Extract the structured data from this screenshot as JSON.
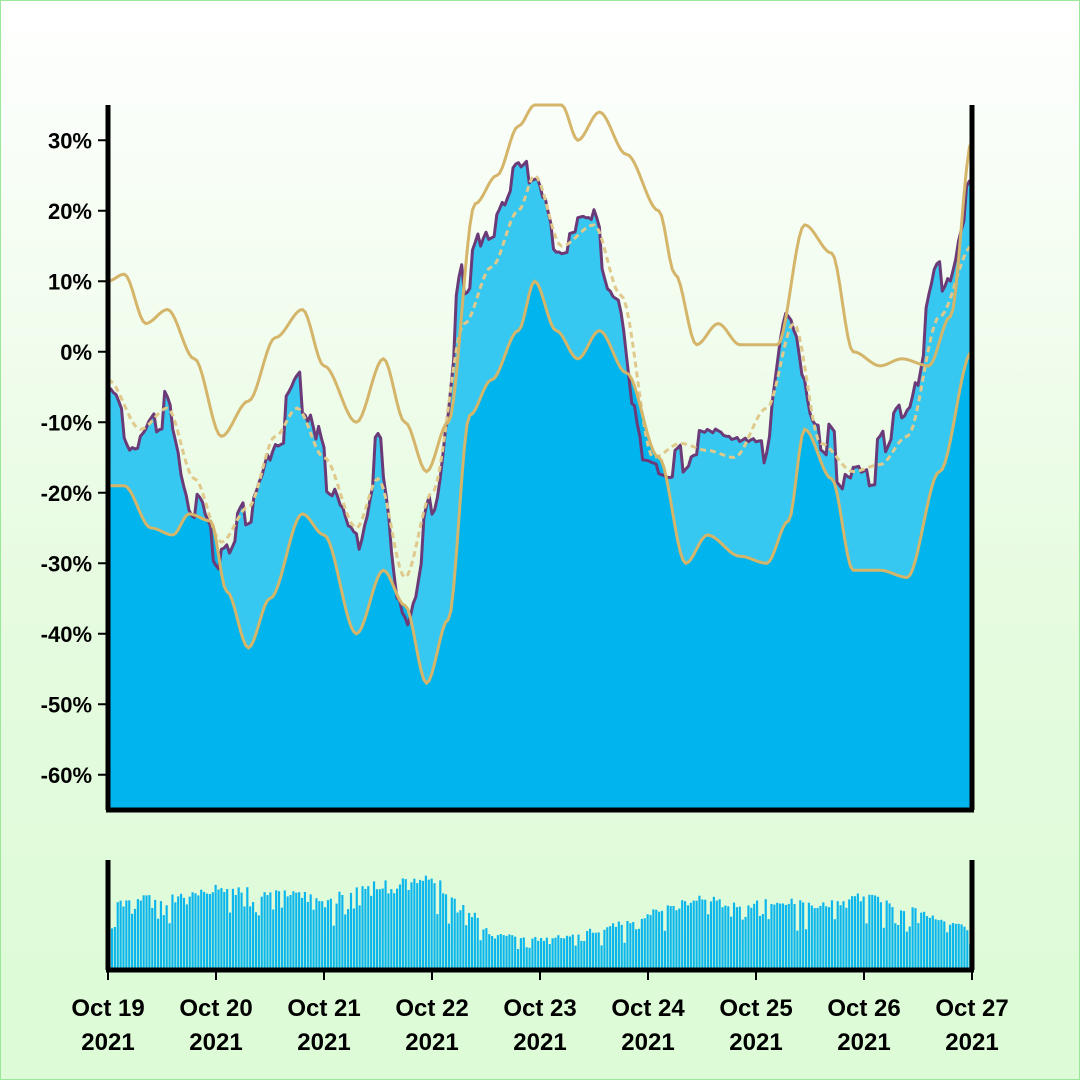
{
  "chart_data": {
    "type": "area",
    "title": "",
    "xlabel": "",
    "ylabel": "",
    "ylim": [
      -65,
      35
    ],
    "xlim": [
      "2021-10-19",
      "2021-10-27"
    ],
    "y_ticks": [
      "30%",
      "20%",
      "10%",
      "0%",
      "-10%",
      "-20%",
      "-30%",
      "-40%",
      "-50%",
      "-60%"
    ],
    "x_ticks": [
      {
        "line1": "Oct 19",
        "line2": "2021"
      },
      {
        "line1": "Oct 20",
        "line2": "2021"
      },
      {
        "line1": "Oct 21",
        "line2": "2021"
      },
      {
        "line1": "Oct 22",
        "line2": "2021"
      },
      {
        "line1": "Oct 23",
        "line2": "2021"
      },
      {
        "line1": "Oct 24",
        "line2": "2021"
      },
      {
        "line1": "Oct 25",
        "line2": "2021"
      },
      {
        "line1": "Oct 26",
        "line2": "2021"
      },
      {
        "line1": "Oct 27",
        "line2": "2021"
      }
    ],
    "x_dates": [
      "2021-10-19",
      "2021-10-19 12:00",
      "2021-10-20",
      "2021-10-20 12:00",
      "2021-10-21",
      "2021-10-21 12:00",
      "2021-10-22",
      "2021-10-22 12:00",
      "2021-10-23",
      "2021-10-23 12:00",
      "2021-10-24",
      "2021-10-24 12:00",
      "2021-10-25",
      "2021-10-25 12:00",
      "2021-10-26",
      "2021-10-26 12:00",
      "2021-10-27"
    ],
    "series": [
      {
        "role": "value",
        "color": "#6b3a78",
        "points": [
          [
            0,
            -5
          ],
          [
            0.25,
            -12
          ],
          [
            0.5,
            -8
          ],
          [
            0.8,
            -22
          ],
          [
            1.05,
            -28
          ],
          [
            1.3,
            -22
          ],
          [
            1.6,
            -10
          ],
          [
            1.8,
            -6
          ],
          [
            2.05,
            -18
          ],
          [
            2.3,
            -27
          ],
          [
            2.5,
            -15
          ],
          [
            2.75,
            -38
          ],
          [
            3.0,
            -22
          ],
          [
            3.3,
            10
          ],
          [
            3.55,
            18
          ],
          [
            3.8,
            25
          ],
          [
            3.95,
            27
          ],
          [
            4.15,
            17
          ],
          [
            4.45,
            18
          ],
          [
            4.7,
            8
          ],
          [
            4.95,
            -15
          ],
          [
            5.2,
            -16
          ],
          [
            5.45,
            -13
          ],
          [
            5.75,
            -15
          ],
          [
            6.05,
            -13
          ],
          [
            6.3,
            7
          ],
          [
            6.55,
            -12
          ],
          [
            6.9,
            -17
          ],
          [
            7.1,
            -16
          ],
          [
            7.35,
            -10
          ],
          [
            7.7,
            10
          ],
          [
            8.0,
            23
          ]
        ]
      },
      {
        "role": "moving-average",
        "color": "#e0c98c",
        "points": [
          [
            0,
            -4
          ],
          [
            0.3,
            -11
          ],
          [
            0.55,
            -8
          ],
          [
            0.8,
            -18
          ],
          [
            1.05,
            -27
          ],
          [
            1.3,
            -22
          ],
          [
            1.55,
            -12
          ],
          [
            1.75,
            -8
          ],
          [
            2.0,
            -15
          ],
          [
            2.3,
            -25
          ],
          [
            2.5,
            -18
          ],
          [
            2.75,
            -32
          ],
          [
            3.0,
            -20
          ],
          [
            3.3,
            4
          ],
          [
            3.55,
            12
          ],
          [
            3.8,
            20
          ],
          [
            3.95,
            25
          ],
          [
            4.2,
            15
          ],
          [
            4.5,
            18
          ],
          [
            4.75,
            8
          ],
          [
            5.05,
            -15
          ],
          [
            5.3,
            -13
          ],
          [
            5.55,
            -14
          ],
          [
            5.8,
            -15
          ],
          [
            6.1,
            -8
          ],
          [
            6.35,
            4
          ],
          [
            6.6,
            -13
          ],
          [
            6.9,
            -17
          ],
          [
            7.15,
            -16
          ],
          [
            7.4,
            -12
          ],
          [
            7.7,
            5
          ],
          [
            8.0,
            15
          ]
        ]
      },
      {
        "role": "upper-band",
        "color": "#d4b56a",
        "points": [
          [
            0,
            10
          ],
          [
            0.15,
            11
          ],
          [
            0.35,
            4
          ],
          [
            0.55,
            6
          ],
          [
            0.8,
            -1
          ],
          [
            1.05,
            -12
          ],
          [
            1.3,
            -7
          ],
          [
            1.55,
            2
          ],
          [
            1.8,
            6
          ],
          [
            2.0,
            -2
          ],
          [
            2.3,
            -10
          ],
          [
            2.55,
            -1
          ],
          [
            2.75,
            -10
          ],
          [
            2.95,
            -17
          ],
          [
            3.15,
            -10
          ],
          [
            3.4,
            21
          ],
          [
            3.6,
            25
          ],
          [
            3.8,
            32
          ],
          [
            3.95,
            35
          ],
          [
            4.2,
            35
          ],
          [
            4.35,
            30
          ],
          [
            4.55,
            34
          ],
          [
            4.8,
            28
          ],
          [
            5.1,
            20
          ],
          [
            5.25,
            11
          ],
          [
            5.45,
            1
          ],
          [
            5.65,
            4
          ],
          [
            5.85,
            1
          ],
          [
            6.05,
            1
          ],
          [
            6.2,
            1
          ],
          [
            6.45,
            18
          ],
          [
            6.7,
            14
          ],
          [
            6.9,
            0
          ],
          [
            7.15,
            -2
          ],
          [
            7.35,
            -1
          ],
          [
            7.6,
            -2
          ],
          [
            7.8,
            5
          ],
          [
            8.0,
            30
          ]
        ]
      },
      {
        "role": "lower-band",
        "color": "#d4b56a",
        "points": [
          [
            0,
            -19
          ],
          [
            0.15,
            -19
          ],
          [
            0.4,
            -25
          ],
          [
            0.6,
            -26
          ],
          [
            0.75,
            -23
          ],
          [
            0.95,
            -24
          ],
          [
            1.1,
            -34
          ],
          [
            1.3,
            -42
          ],
          [
            1.5,
            -35
          ],
          [
            1.8,
            -23
          ],
          [
            2.0,
            -26
          ],
          [
            2.3,
            -40
          ],
          [
            2.55,
            -31
          ],
          [
            2.75,
            -36
          ],
          [
            2.95,
            -47
          ],
          [
            3.15,
            -38
          ],
          [
            3.35,
            -9
          ],
          [
            3.55,
            -4
          ],
          [
            3.8,
            3
          ],
          [
            3.95,
            10
          ],
          [
            4.15,
            3
          ],
          [
            4.35,
            -1
          ],
          [
            4.55,
            3
          ],
          [
            4.8,
            -3
          ],
          [
            5.1,
            -15
          ],
          [
            5.35,
            -30
          ],
          [
            5.55,
            -26
          ],
          [
            5.85,
            -29
          ],
          [
            6.1,
            -30
          ],
          [
            6.3,
            -24
          ],
          [
            6.45,
            -11
          ],
          [
            6.7,
            -18
          ],
          [
            6.9,
            -31
          ],
          [
            7.15,
            -31
          ],
          [
            7.4,
            -32
          ],
          [
            7.7,
            -17
          ],
          [
            8.0,
            0
          ]
        ]
      }
    ],
    "area_fill_colors": [
      "#00b4ee",
      "#36c8f0"
    ],
    "volume": {
      "color": "#0bb6ec",
      "points": [
        [
          0,
          0.62
        ],
        [
          0.5,
          0.7
        ],
        [
          1.0,
          0.78
        ],
        [
          1.5,
          0.74
        ],
        [
          2.0,
          0.7
        ],
        [
          2.5,
          0.82
        ],
        [
          3.0,
          0.86
        ],
        [
          3.3,
          0.6
        ],
        [
          3.6,
          0.35
        ],
        [
          3.9,
          0.3
        ],
        [
          4.2,
          0.32
        ],
        [
          4.5,
          0.38
        ],
        [
          4.8,
          0.45
        ],
        [
          5.2,
          0.6
        ],
        [
          5.5,
          0.7
        ],
        [
          5.8,
          0.62
        ],
        [
          6.2,
          0.66
        ],
        [
          6.6,
          0.62
        ],
        [
          7.0,
          0.7
        ],
        [
          7.4,
          0.6
        ],
        [
          7.8,
          0.45
        ],
        [
          8.0,
          0.4
        ]
      ]
    },
    "grid": false,
    "legend": "none"
  }
}
